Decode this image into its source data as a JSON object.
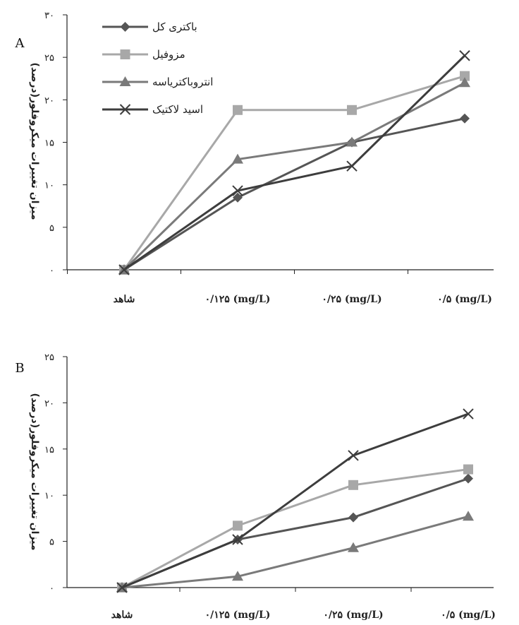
{
  "colors": {
    "total_bacteria": "#555555",
    "mesophilic": "#a8a8a8",
    "enterobacteriaceae": "#7a7a7a",
    "lactic_acid": "#3d3d3d"
  },
  "chart_data": [
    {
      "type": "line",
      "panel_label": "A",
      "ylabel": "میزان تغییرات میکروفلور(درصد)",
      "categories": [
        "شاهد",
        "۰/۱۲۵ (mg/L)",
        "۰/۲۵ (mg/L)",
        "۰/۵ (mg/L)"
      ],
      "yticks": [
        "۰",
        "۵",
        "۱۰",
        "۱۵",
        "۲۰",
        "۲۵",
        "۳۰"
      ],
      "ylim": [
        0,
        30
      ],
      "grid": false,
      "legend": "top-left",
      "series": [
        {
          "name": "باکتری کل",
          "key": "total_bacteria",
          "marker": "diamond",
          "values": [
            0,
            8.5,
            15,
            17.8
          ]
        },
        {
          "name": "مزوفیل",
          "key": "mesophilic",
          "marker": "square",
          "values": [
            0,
            18.8,
            18.8,
            22.8
          ]
        },
        {
          "name": "انتروباکتریاسه",
          "key": "enterobacteriaceae",
          "marker": "triangle",
          "values": [
            0,
            13,
            15,
            22
          ]
        },
        {
          "name": "اسید لاکتیک",
          "key": "lactic_acid",
          "marker": "x",
          "values": [
            0,
            9.3,
            12.2,
            25.2
          ]
        }
      ]
    },
    {
      "type": "line",
      "panel_label": "B",
      "ylabel": "میزان تغییرات میکروفلور(درصد)",
      "categories": [
        "شاهد",
        "۰/۱۲۵ (mg/L)",
        "۰/۲۵ (mg/L)",
        "۰/۵ (mg/L)"
      ],
      "yticks": [
        "۰",
        "۵",
        "۱۰",
        "۱۵",
        "۲۰",
        "۲۵"
      ],
      "ylim": [
        0,
        25
      ],
      "grid": false,
      "legend": "none",
      "series": [
        {
          "name": "باکتری کل",
          "key": "total_bacteria",
          "marker": "diamond",
          "values": [
            0,
            5.2,
            7.6,
            11.8
          ]
        },
        {
          "name": "مزوفیل",
          "key": "mesophilic",
          "marker": "square",
          "values": [
            0,
            6.7,
            11.1,
            12.8
          ]
        },
        {
          "name": "انتروباکتریاسه",
          "key": "enterobacteriaceae",
          "marker": "triangle",
          "values": [
            0,
            1.2,
            4.3,
            7.7
          ]
        },
        {
          "name": "اسید لاکتیک",
          "key": "lactic_acid",
          "marker": "x",
          "values": [
            0,
            5.2,
            14.3,
            18.8
          ]
        }
      ]
    }
  ]
}
